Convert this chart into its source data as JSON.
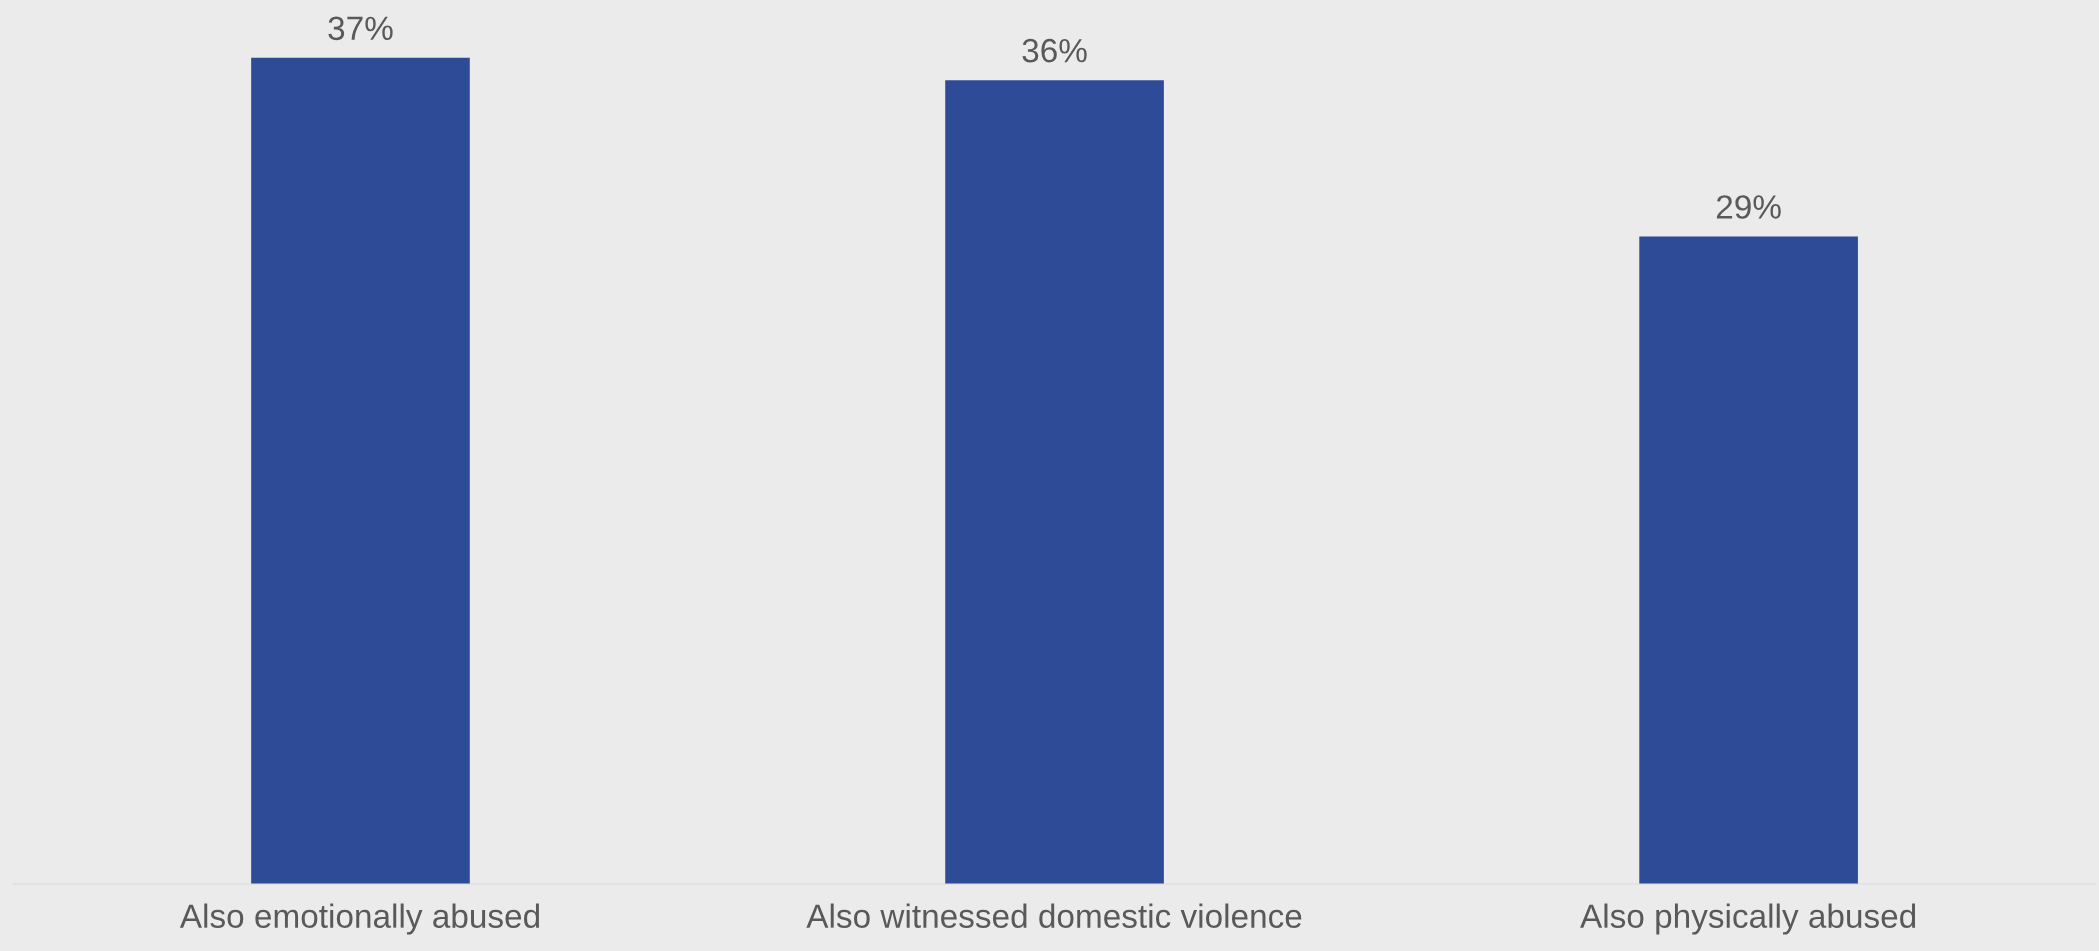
{
  "chart_data": {
    "type": "bar",
    "categories": [
      "Also emotionally abused",
      "Also witnessed domestic violence",
      "Also physically abused"
    ],
    "values": [
      37,
      36,
      29
    ],
    "value_labels": [
      "37%",
      "36%",
      "29%"
    ],
    "color": "#2e4b97",
    "grid": false
  }
}
